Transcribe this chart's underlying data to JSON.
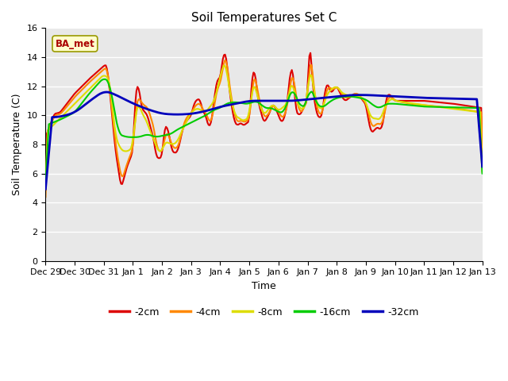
{
  "title": "Soil Temperatures Set C",
  "xlabel": "Time",
  "ylabel": "Soil Temperature (C)",
  "ylim": [
    0,
    16
  ],
  "yticks": [
    0,
    2,
    4,
    6,
    8,
    10,
    12,
    14,
    16
  ],
  "plot_bg_color": "#e8e8e8",
  "fig_bg_color": "#ffffff",
  "legend_label": "BA_met",
  "legend_colors": {
    "-2cm": "#dd0000",
    "-4cm": "#ff8800",
    "-8cm": "#dddd00",
    "-16cm": "#00cc00",
    "-32cm": "#0000bb"
  },
  "x_tick_labels": [
    "Dec 29",
    "Dec 30",
    "Dec 31",
    "Jan 1",
    "Jan 2",
    "Jan 3",
    "Jan 4",
    "Jan 5",
    "Jan 6",
    "Jan 7",
    "Jan 8",
    "Jan 9",
    "Jan 10",
    "Jan 11",
    "Jan 12",
    "Jan 13"
  ]
}
